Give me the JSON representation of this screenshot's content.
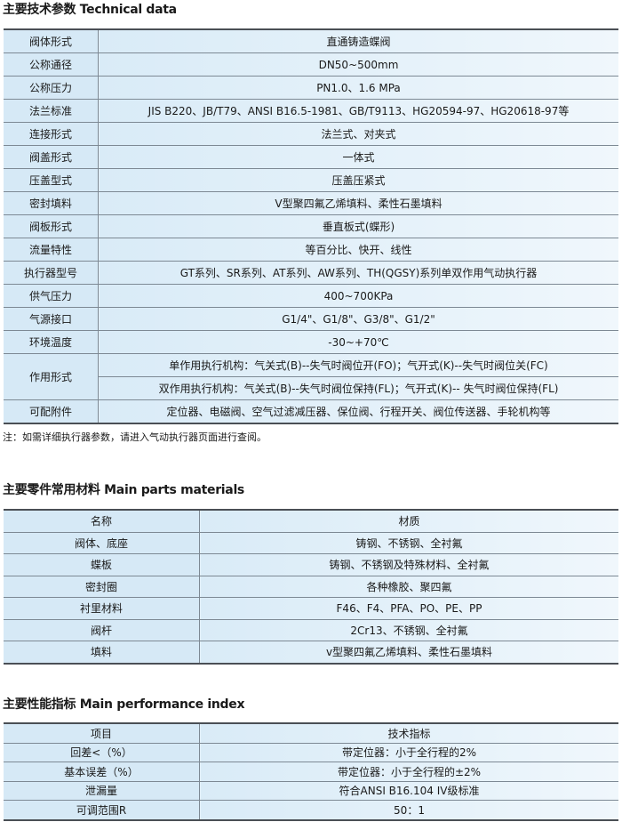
{
  "technical": {
    "title": "主要技术参数 Technical data",
    "rows": [
      {
        "k": "阀体形式",
        "v": [
          "直通铸造蝶阀"
        ]
      },
      {
        "k": "公称通径",
        "v": [
          "DN50~500mm"
        ]
      },
      {
        "k": "公称压力",
        "v": [
          "PN1.0、1.6 MPa"
        ]
      },
      {
        "k": "法兰标准",
        "v": [
          "JIS B220、JB/T79、ANSI B16.5-1981、GB/T9113、HG20594-97、HG20618-97等"
        ]
      },
      {
        "k": "连接形式",
        "v": [
          "法兰式、对夹式"
        ]
      },
      {
        "k": "阀盖形式",
        "v": [
          "一体式"
        ]
      },
      {
        "k": "压盖型式",
        "v": [
          "压盖压紧式"
        ]
      },
      {
        "k": "密封填料",
        "v": [
          "V型聚四氟乙烯填料、柔性石墨填料"
        ]
      },
      {
        "k": "阀板形式",
        "v": [
          "垂直板式(蝶形)"
        ]
      },
      {
        "k": "流量特性",
        "v": [
          "等百分比、快开、线性"
        ]
      },
      {
        "k": "执行器型号",
        "v": [
          "GT系列、SR系列、AT系列、AW系列、TH(QGSY)系列单双作用气动执行器"
        ]
      },
      {
        "k": "供气压力",
        "v": [
          "400~700KPa"
        ]
      },
      {
        "k": "气源接口",
        "v": [
          "G1/4\"、G1/8\"、G3/8\"、G1/2\""
        ]
      },
      {
        "k": "环境温度",
        "v": [
          "-30~+70℃"
        ]
      },
      {
        "k": "作用形式",
        "v": [
          "单作用执行机构：气关式(B)--失气时阀位开(FO)；气开式(K)--失气时阀位关(FC)",
          "双作用执行机构：气关式(B)--失气时阀位保持(FL)；气开式(K)-- 失气时阀位保持(FL)"
        ]
      },
      {
        "k": "可配附件",
        "v": [
          "定位器、电磁阀、空气过滤减压器、保位阀、行程开关、阀位传送器、手轮机构等"
        ]
      }
    ],
    "note": "注：如需详细执行器参数，请进入气动执行器页面进行查阅。"
  },
  "materials": {
    "title": "主要零件常用材料 Main parts materials",
    "header": [
      "名称",
      "材质"
    ],
    "rows": [
      [
        "阀体、底座",
        "铸钢、不锈钢、全衬氟"
      ],
      [
        "蝶板",
        "铸钢、不锈钢及特殊材料、全衬氟"
      ],
      [
        "密封圈",
        "各种橡胶、聚四氟"
      ],
      [
        "衬里材料",
        "F46、F4、PFA、PO、PE、PP"
      ],
      [
        "阀杆",
        "2Cr13、不锈钢、全衬氟"
      ],
      [
        "填料",
        "v型聚四氟乙烯填料、柔性石墨填料"
      ]
    ]
  },
  "performance": {
    "title": "主要性能指标 Main performance index",
    "header": [
      "项目",
      "技术指标"
    ],
    "rows": [
      [
        "回差<（%）",
        "带定位器：小于全行程的2%"
      ],
      [
        "基本误差（%）",
        "带定位器：小于全行程的±2%"
      ],
      [
        "泄漏量",
        "符合ANSI B16.104 IV级标准"
      ],
      [
        "可调范围R",
        "50：1"
      ]
    ]
  }
}
